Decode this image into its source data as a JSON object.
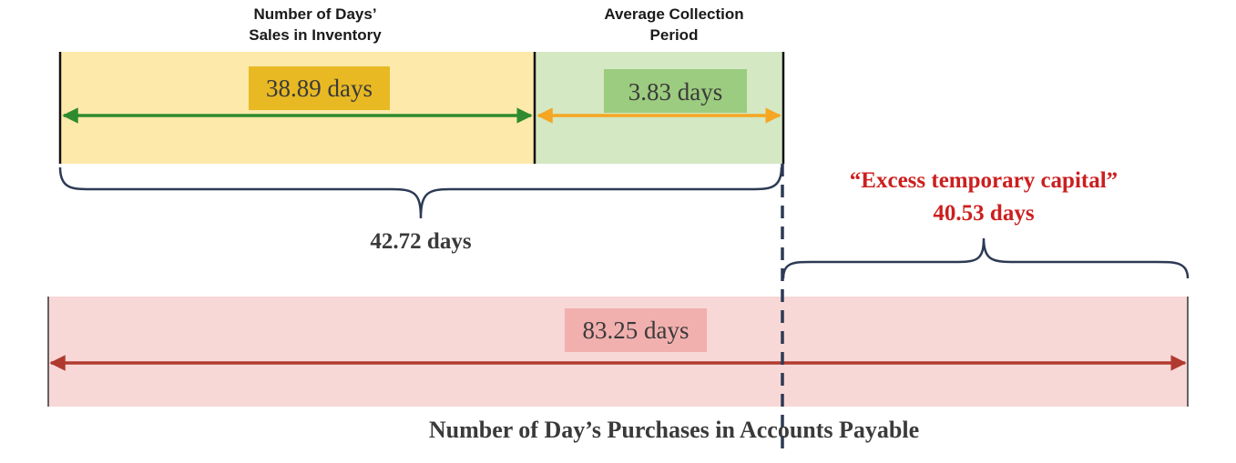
{
  "headers": {
    "inventory_line1": "Number of Days’",
    "inventory_line2": "Sales in Inventory",
    "collection_line1": "Average Collection",
    "collection_line2": "Period"
  },
  "segments": {
    "inventory": {
      "label": "38.89 days",
      "value": 38.89
    },
    "collection": {
      "label": "3.83 days",
      "value": 3.83
    },
    "operating_cycle": {
      "label": "42.72 days",
      "value": 42.72
    },
    "payables": {
      "label": "83.25 days",
      "value": 83.25
    }
  },
  "excess": {
    "title": "“Excess temporary capital”",
    "value_label": "40.53 days",
    "value": 40.53
  },
  "footer": {
    "title": "Number of Day’s Purchases in Accounts Payable"
  },
  "colors": {
    "inventory_fill": "#fde9a9",
    "inventory_pill": "#e8b923",
    "inventory_arrow": "#2e8b2e",
    "collection_fill": "#d4e8c4",
    "collection_pill": "#9ccc7f",
    "collection_arrow": "#f5a623",
    "payables_fill": "#f8d7d7",
    "payables_pill": "#f1b0ae",
    "payables_arrow": "#b03a2e",
    "brace": "#2d3a55",
    "excess_text": "#cc1f1f"
  }
}
